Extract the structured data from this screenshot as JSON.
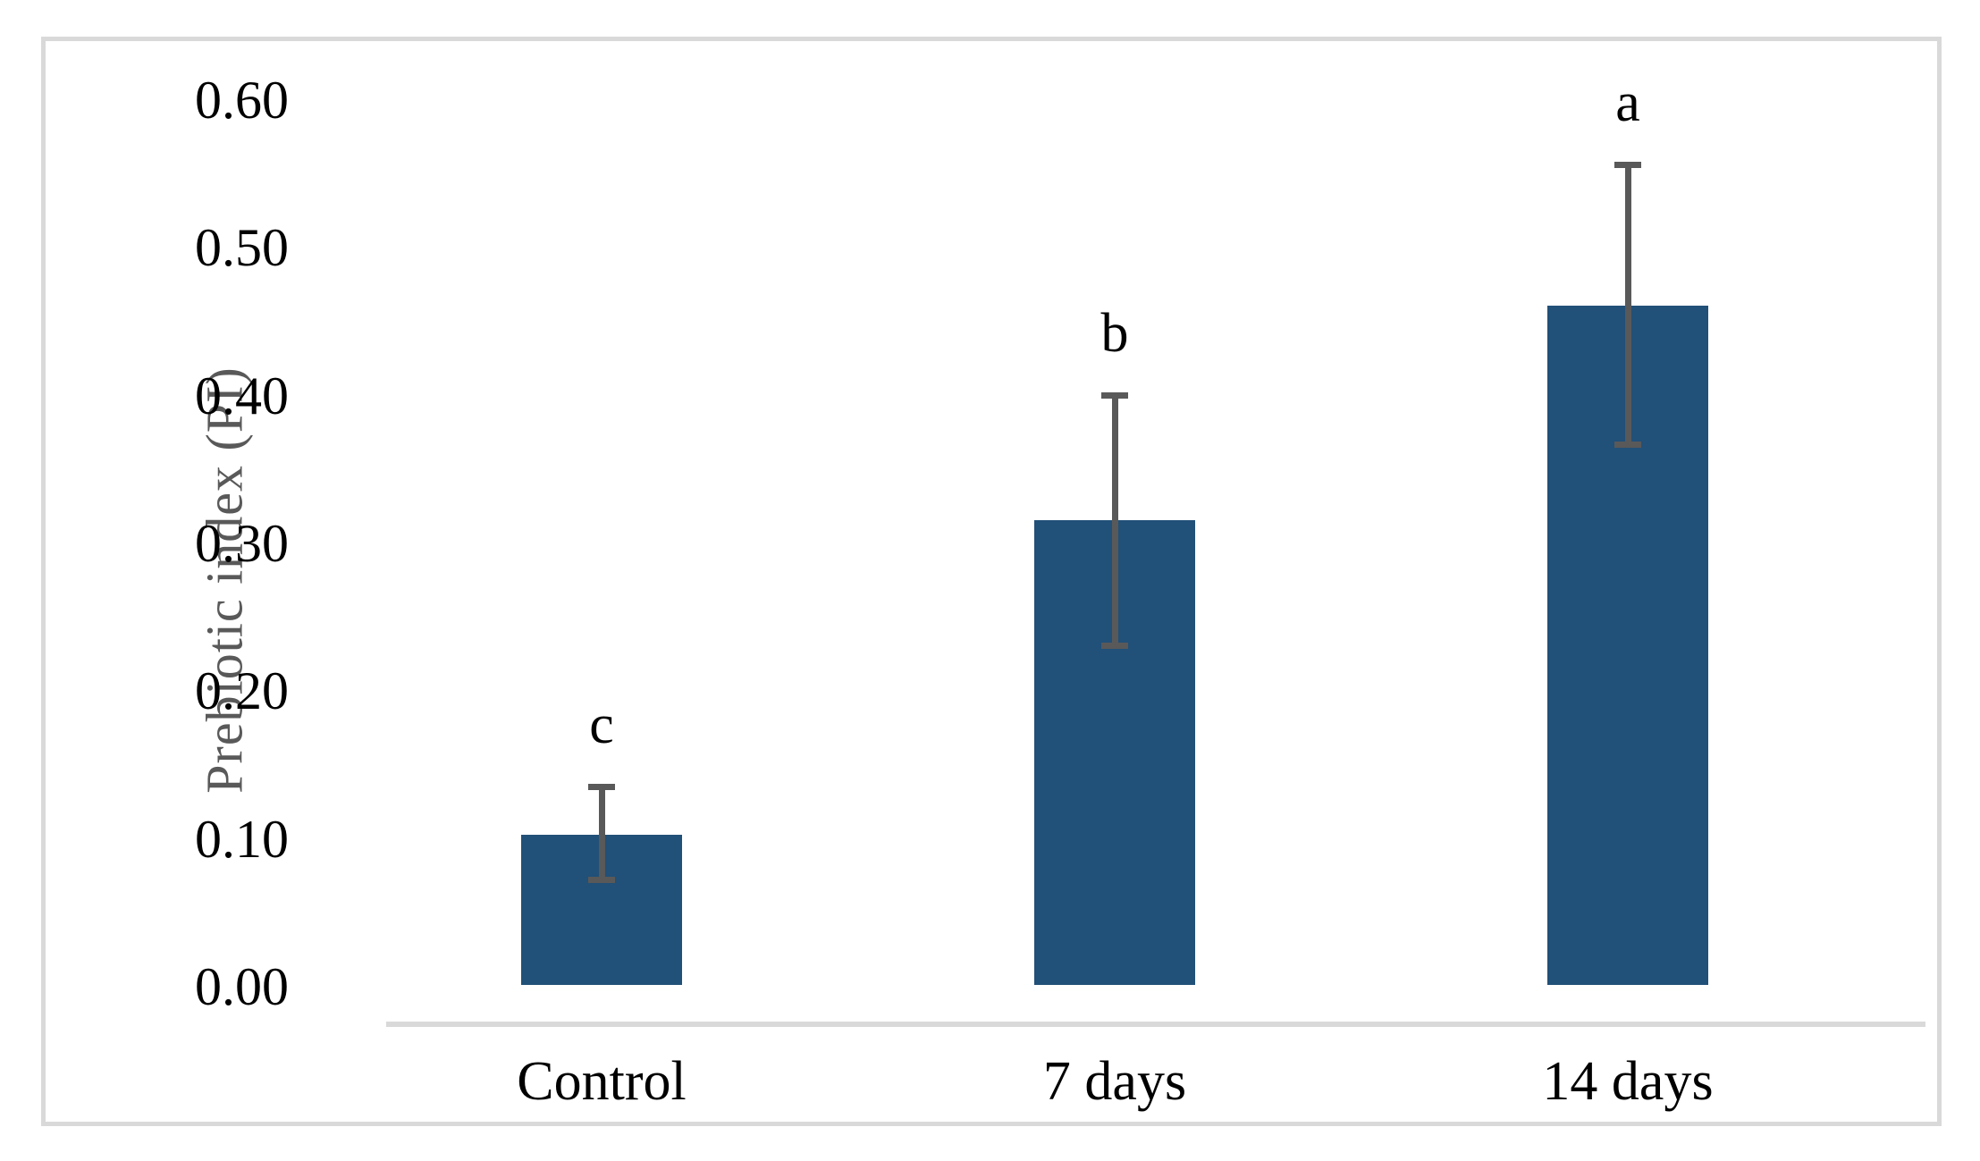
{
  "figure": {
    "background_color": "#ffffff",
    "frame_border_color": "#D9D9D9"
  },
  "chart_data": {
    "type": "bar",
    "title": "",
    "xlabel": "",
    "ylabel": "Prebiotic index (PI)",
    "categories": [
      "Control",
      "7 days",
      "14 days"
    ],
    "values": [
      0.103,
      0.316,
      0.461
    ],
    "error_upper": [
      0.135,
      0.4,
      0.556
    ],
    "error_lower": [
      0.072,
      0.231,
      0.367
    ],
    "significance_letters": [
      "c",
      "b",
      "a"
    ],
    "ylim": [
      0.0,
      0.6
    ],
    "ytick_step": 0.1,
    "ytick_labels": [
      "0.00",
      "0.10",
      "0.20",
      "0.30",
      "0.40",
      "0.50",
      "0.60"
    ],
    "grid": false,
    "legend_position": "none",
    "bar_color": "#215078",
    "error_bar_color": "#595959",
    "axis_line_color": "#D9D9D9",
    "ylabel_color": "#595959",
    "tick_label_color": "#000000"
  }
}
